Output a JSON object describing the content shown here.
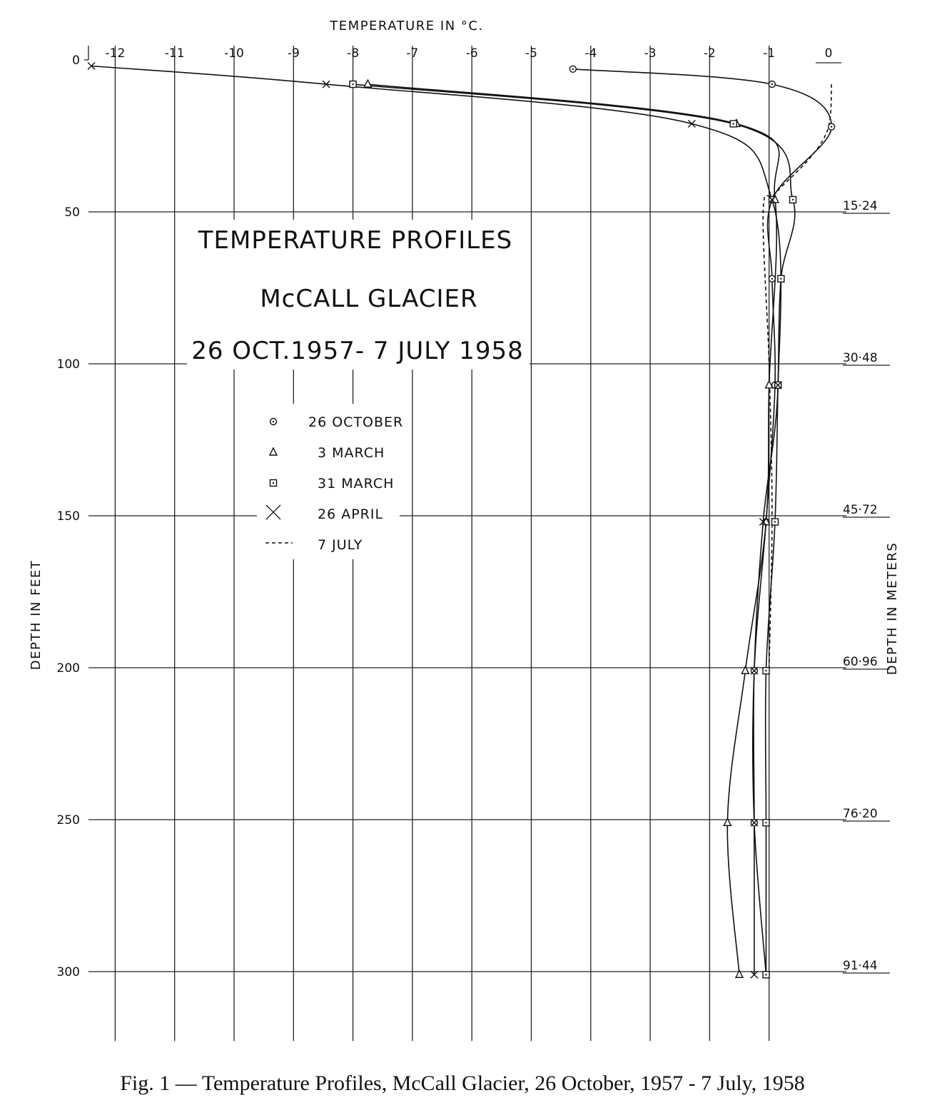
{
  "chart_data": {
    "type": "line",
    "title": [
      "TEMPERATURE  PROFILES",
      "McCALL  GLACIER",
      "26 OCT.1957- 7 JULY 1958"
    ],
    "xlabel": "TEMPERATURE  IN  °C.",
    "ylabel": "DEPTH  IN  FEET",
    "y2label": "DEPTH  IN  METERS",
    "xlim": [
      -12.5,
      0
    ],
    "ylim": [
      0,
      320
    ],
    "x_ticks": [
      "-12",
      "-11",
      "-10",
      "-9",
      "-8",
      "-7",
      "-6",
      "-5",
      "-4",
      "-3",
      "-2",
      "-1",
      "0"
    ],
    "y_ticks": [
      "0",
      "50",
      "100",
      "150",
      "200",
      "250",
      "300"
    ],
    "y2_ticks": [
      "15·24",
      "30·48",
      "45·72",
      "60·96",
      "76·20",
      "91·44"
    ],
    "grid": true,
    "legend_position": "center-left",
    "series": [
      {
        "name": "26 OCTOBER",
        "marker": "circle-dot",
        "x": [
          -4.3,
          -0.95,
          0.05,
          -0.95,
          -0.95,
          -0.9,
          -1.05,
          -1.25,
          -1.25,
          -1.05
        ],
        "y": [
          3,
          8,
          22,
          46,
          72,
          107,
          152,
          201,
          251,
          301
        ]
      },
      {
        "name": "3 MARCH",
        "marker": "triangle",
        "x": [
          -7.75,
          -1.55,
          -0.9,
          -1.0,
          -1.05,
          -1.4,
          -1.7,
          -1.5
        ],
        "y": [
          8,
          21,
          46,
          107,
          152,
          201,
          251,
          301
        ]
      },
      {
        "name": "31 MARCH",
        "marker": "square-dot",
        "x": [
          -8.0,
          -1.6,
          -0.6,
          -0.8,
          -0.85,
          -0.9,
          -1.05,
          -1.05,
          -1.05
        ],
        "y": [
          8,
          21,
          46,
          72,
          107,
          152,
          201,
          251,
          301
        ]
      },
      {
        "name": "26 APRIL",
        "marker": "x",
        "x": [
          -12.4,
          -8.45,
          -2.3,
          -0.95,
          -0.85,
          -1.1,
          -1.25,
          -1.25,
          -1.25
        ],
        "y": [
          2,
          8,
          21,
          46,
          107,
          152,
          201,
          251,
          301
        ]
      },
      {
        "name": "7 JULY",
        "marker": "dashed",
        "x": [
          0.05,
          0.0,
          -0.3,
          -0.9,
          -1.1,
          -1.0,
          -0.95,
          -1.0
        ],
        "y": [
          8,
          22,
          32,
          44,
          50,
          100,
          150,
          200
        ]
      }
    ]
  },
  "caption": "Fig. 1 — Temperature Profiles, McCall Glacier, 26 October, 1957 - 7 July, 1958"
}
